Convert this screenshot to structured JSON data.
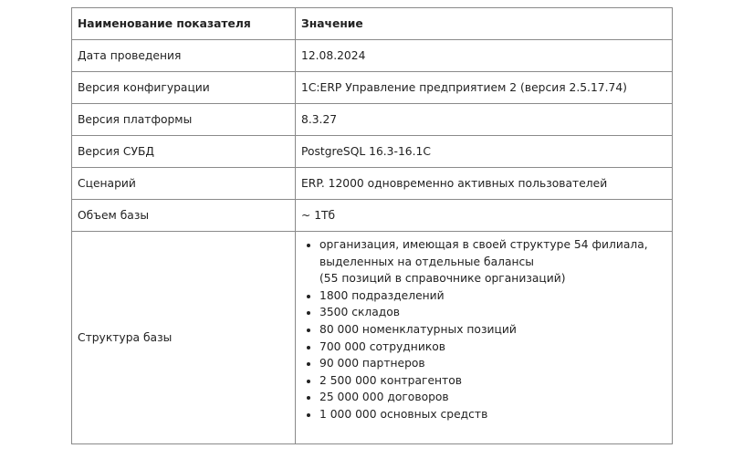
{
  "table": {
    "headers": [
      "Наименование показателя",
      "Значение"
    ],
    "rows": [
      {
        "name": "Дата проведения",
        "value": "12.08.2024"
      },
      {
        "name": "Версия конфигурации",
        "value": "1С:ERP Управление предприятием 2 (версия 2.5.17.74)"
      },
      {
        "name": "Версия платформы",
        "value": "8.3.27"
      },
      {
        "name": "Версия СУБД",
        "value": "PostgreSQL 16.3-16.1С"
      },
      {
        "name": "Сценарий",
        "value": "ERP. 12000 одновременно активных пользователей"
      },
      {
        "name": "Объем базы",
        "value": "~ 1Тб"
      }
    ],
    "structure": {
      "name": "Структура базы",
      "first_item": "организация, имеющая в своей структуре 54 филиала, выделенных на отдельные балансы",
      "first_item_note": "(55 позиций в справочнике организаций)",
      "items": [
        "1800 подразделений",
        "3500 складов",
        "80 000 номенклатурных позиций",
        "700 000 сотрудников",
        "90 000 партнеров",
        "2 500 000 контрагентов",
        "25 000 000 договоров",
        "1 000 000 основных средств"
      ]
    }
  }
}
